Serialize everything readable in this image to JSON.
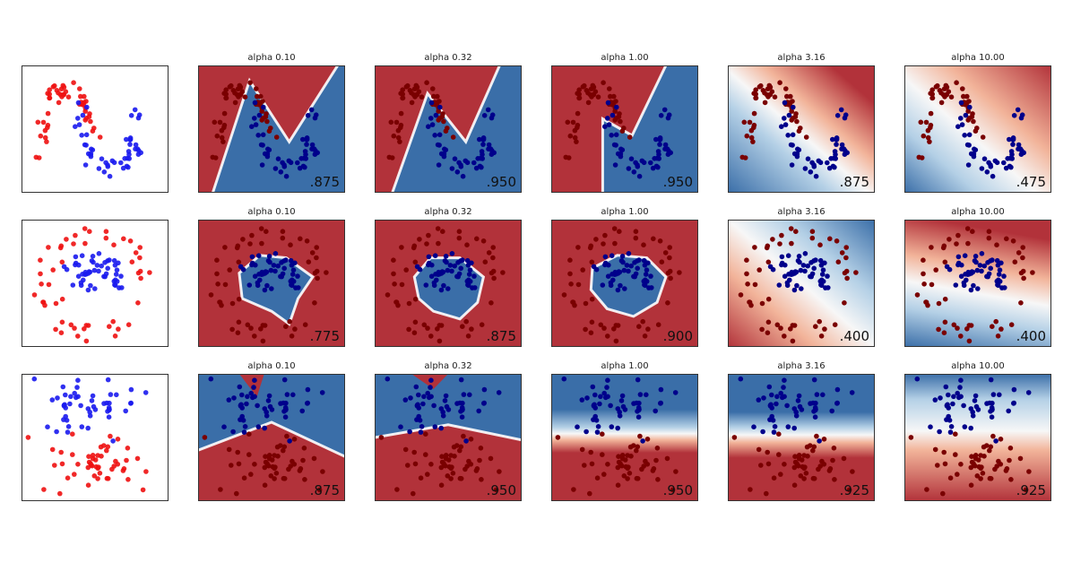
{
  "chart_data": {
    "type": "scatter",
    "rows": [
      {
        "dataset": "moons",
        "panels": [
          {
            "title": "alpha 0.10",
            "score": ".875"
          },
          {
            "title": "alpha 0.32",
            "score": ".950"
          },
          {
            "title": "alpha 1.00",
            "score": ".950"
          },
          {
            "title": "alpha 3.16",
            "score": ".875"
          },
          {
            "title": "alpha 10.00",
            "score": ".475"
          }
        ]
      },
      {
        "dataset": "circles",
        "panels": [
          {
            "title": "alpha 0.10",
            "score": ".775"
          },
          {
            "title": "alpha 0.32",
            "score": ".875"
          },
          {
            "title": "alpha 1.00",
            "score": ".900"
          },
          {
            "title": "alpha 3.16",
            "score": ".400"
          },
          {
            "title": "alpha 10.00",
            "score": ".400"
          }
        ]
      },
      {
        "dataset": "linear",
        "panels": [
          {
            "title": "alpha 0.10",
            "score": ".875"
          },
          {
            "title": "alpha 0.32",
            "score": ".950"
          },
          {
            "title": "alpha 1.00",
            "score": ".950"
          },
          {
            "title": "alpha 3.16",
            "score": ".925"
          },
          {
            "title": "alpha 10.00",
            "score": ".925"
          }
        ]
      }
    ],
    "colors": {
      "red_region": "#b2323a",
      "blue_region": "#3a6ea8",
      "light_red": "#f2b49a",
      "light_blue": "#b4d0e6",
      "white": "#f7f7f7",
      "point_red_raw": "#ee1111",
      "point_blue_raw": "#1a1aee",
      "point_red_dark": "#7a0000",
      "point_blue_dark": "#00008b"
    }
  }
}
